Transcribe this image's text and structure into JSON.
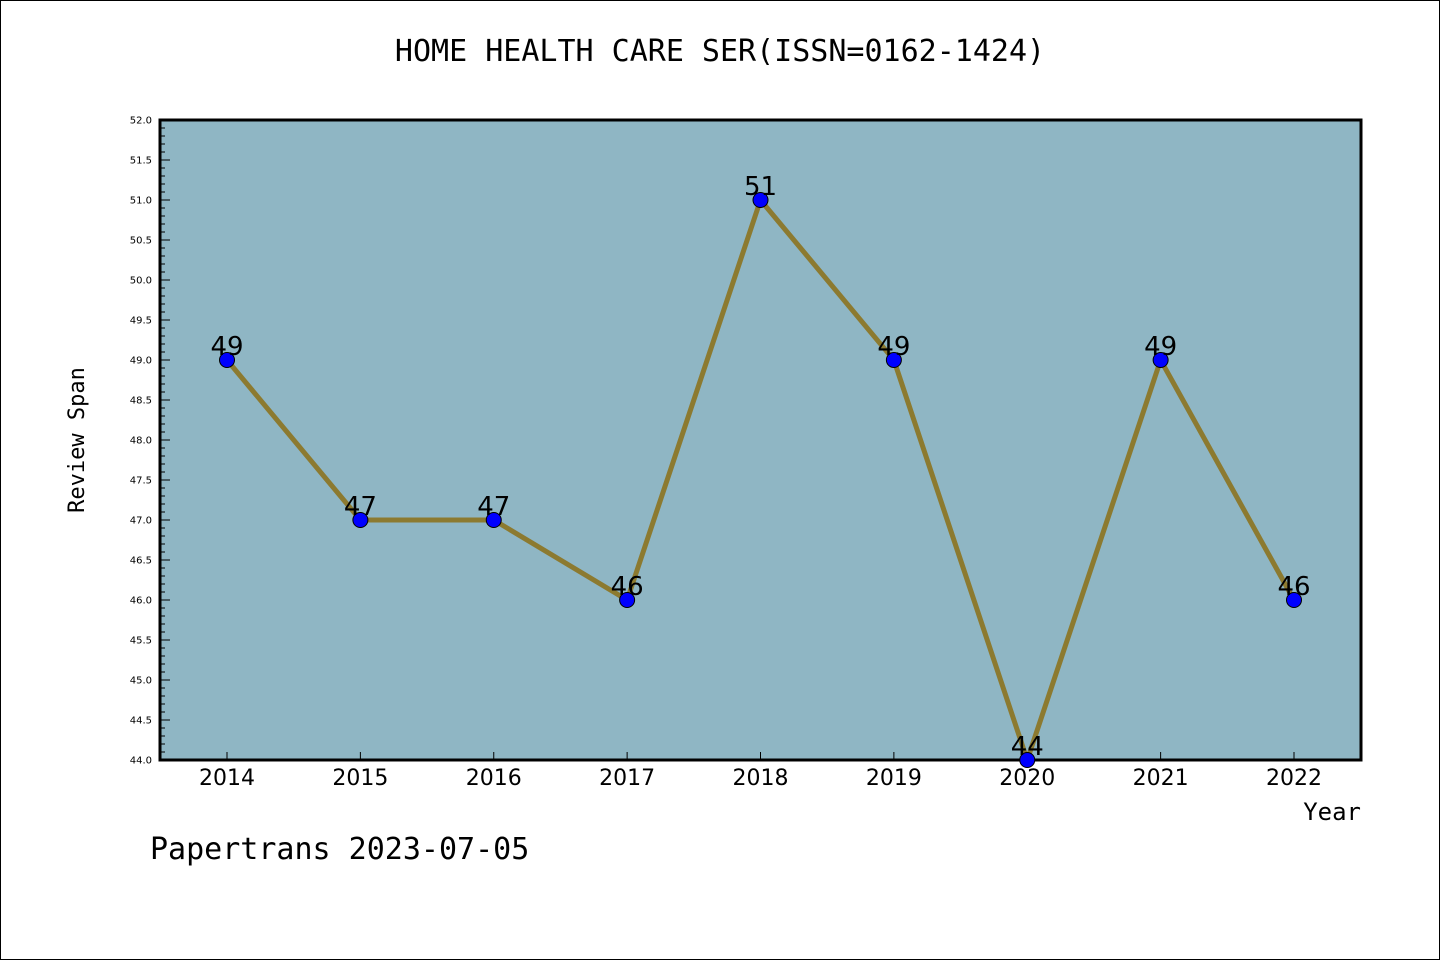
{
  "chart_data": {
    "type": "line",
    "title": "HOME HEALTH CARE SER(ISSN=0162-1424)",
    "xlabel": "Year",
    "ylabel": "Review Span",
    "categories": [
      "2014",
      "2015",
      "2016",
      "2017",
      "2018",
      "2019",
      "2020",
      "2021",
      "2022"
    ],
    "series": [
      {
        "values": [
          49,
          47,
          47,
          46,
          51,
          49,
          44,
          49,
          46
        ]
      }
    ],
    "data_labels": [
      "49",
      "47",
      "47",
      "46",
      "51",
      "49",
      "44",
      "49",
      "46"
    ],
    "ylim": [
      44.0,
      52.0
    ],
    "yticks": [
      "44.0",
      "44.5",
      "45.0",
      "45.5",
      "46.0",
      "46.5",
      "47.0",
      "47.5",
      "48.0",
      "48.5",
      "49.0",
      "49.5",
      "50.0",
      "50.5",
      "51.0",
      "51.5",
      "52.0"
    ],
    "grid": false,
    "legend": "none",
    "colors": {
      "plot_background": "#8fb6c4",
      "line": "#8c7a30",
      "marker": "#0000ff"
    }
  },
  "footer": "Papertrans 2023-07-05"
}
